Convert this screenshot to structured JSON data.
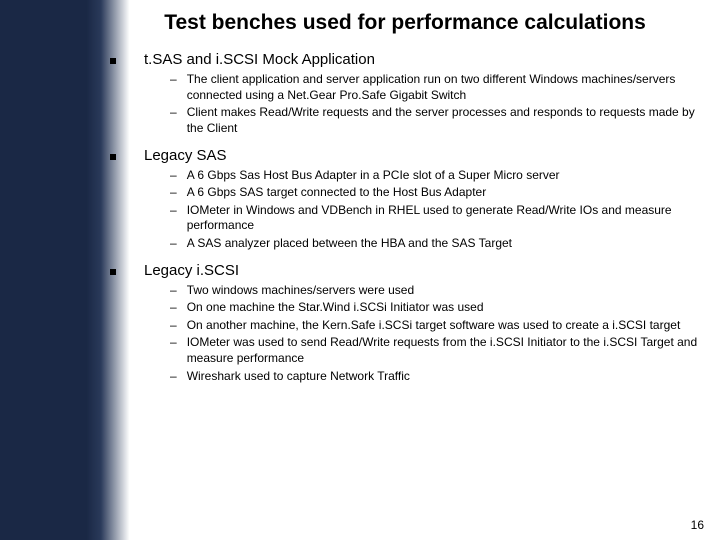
{
  "title": "Test benches used for performance calculations",
  "sections": [
    {
      "heading": "t.SAS and i.SCSI Mock Application",
      "items": [
        "The client application and server application run on two different Windows machines/servers connected using a Net.Gear Pro.Safe Gigabit Switch",
        "Client makes Read/Write requests and the server processes and responds to requests made by the Client"
      ]
    },
    {
      "heading": "Legacy SAS",
      "items": [
        "A 6 Gbps Sas Host Bus Adapter in a PCIe slot of a Super Micro server",
        "A 6 Gbps SAS target connected to the Host Bus Adapter",
        "IOMeter in Windows and VDBench in RHEL used to generate Read/Write IOs and measure performance",
        "A SAS analyzer placed between the HBA and the SAS Target"
      ]
    },
    {
      "heading": "Legacy i.SCSI",
      "items": [
        "Two windows machines/servers were used",
        "On one machine the Star.Wind i.SCSi Initiator was used",
        "On another machine, the Kern.Safe i.SCSi target software was used to create a i.SCSI target",
        "IOMeter was used to send Read/Write requests from the i.SCSI Initiator to the i.SCSI Target and measure performance",
        "Wireshark used to capture Network Traffic"
      ]
    }
  ],
  "pageNumber": "16"
}
